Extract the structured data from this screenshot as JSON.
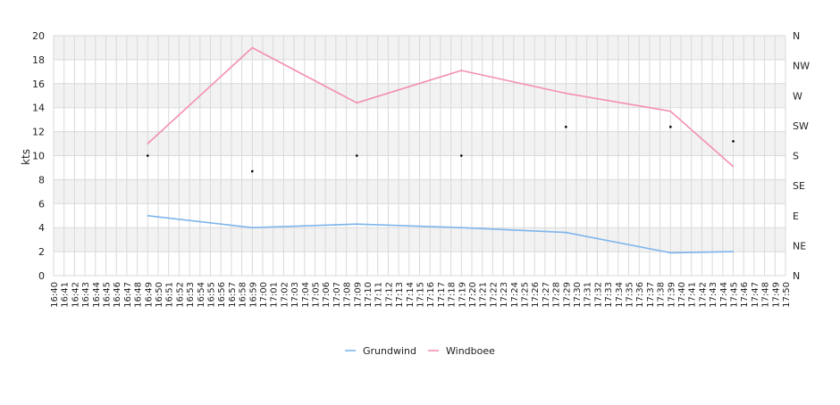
{
  "chart_data": {
    "type": "line",
    "ylabel": "kts",
    "ylim": [
      0,
      20
    ],
    "yticks": [
      0,
      2,
      4,
      6,
      8,
      10,
      12,
      14,
      16,
      18,
      20
    ],
    "y2_labels": [
      "N",
      "NE",
      "E",
      "SE",
      "S",
      "SW",
      "W",
      "NW",
      "N"
    ],
    "x_start": "16:40",
    "x_end": "17:50",
    "x_categories": [
      "16:40",
      "16:41",
      "16:42",
      "16:43",
      "16:44",
      "16:45",
      "16:46",
      "16:47",
      "16:48",
      "16:49",
      "16:50",
      "16:51",
      "16:52",
      "16:53",
      "16:54",
      "16:55",
      "16:56",
      "16:57",
      "16:58",
      "16:59",
      "17:00",
      "17:01",
      "17:02",
      "17:03",
      "17:04",
      "17:05",
      "17:06",
      "17:07",
      "17:08",
      "17:09",
      "17:10",
      "17:11",
      "17:12",
      "17:13",
      "17:14",
      "17:15",
      "17:16",
      "17:17",
      "17:18",
      "17:19",
      "17:20",
      "17:21",
      "17:22",
      "17:23",
      "17:24",
      "17:25",
      "17:26",
      "17:27",
      "17:28",
      "17:29",
      "17:30",
      "17:31",
      "17:32",
      "17:33",
      "17:34",
      "17:35",
      "17:36",
      "17:37",
      "17:38",
      "17:39",
      "17:40",
      "17:41",
      "17:42",
      "17:43",
      "17:44",
      "17:45",
      "17:46",
      "17:47",
      "17:48",
      "17:49",
      "17:50"
    ],
    "grid": true,
    "legend_position": "bottom-center",
    "series": [
      {
        "name": "Grundwind",
        "color": "#7cb5ec",
        "points": [
          {
            "x": "16:49",
            "y": 5.0
          },
          {
            "x": "16:59",
            "y": 4.0
          },
          {
            "x": "17:09",
            "y": 4.3
          },
          {
            "x": "17:19",
            "y": 4.0
          },
          {
            "x": "17:29",
            "y": 3.6
          },
          {
            "x": "17:39",
            "y": 1.9
          },
          {
            "x": "17:45",
            "y": 2.0
          }
        ]
      },
      {
        "name": "Windboee",
        "color": "#f48fb1",
        "points": [
          {
            "x": "16:49",
            "y": 11.0
          },
          {
            "x": "16:59",
            "y": 19.0
          },
          {
            "x": "17:09",
            "y": 14.4
          },
          {
            "x": "17:19",
            "y": 17.1
          },
          {
            "x": "17:29",
            "y": 15.2
          },
          {
            "x": "17:39",
            "y": 13.7
          },
          {
            "x": "17:45",
            "y": 9.1
          }
        ]
      }
    ],
    "direction_markers": [
      {
        "x": "16:49",
        "y": 10.0
      },
      {
        "x": "16:59",
        "y": 8.7
      },
      {
        "x": "17:09",
        "y": 10.0
      },
      {
        "x": "17:19",
        "y": 10.0
      },
      {
        "x": "17:29",
        "y": 12.4
      },
      {
        "x": "17:39",
        "y": 12.4
      },
      {
        "x": "17:45",
        "y": 11.2
      }
    ]
  }
}
